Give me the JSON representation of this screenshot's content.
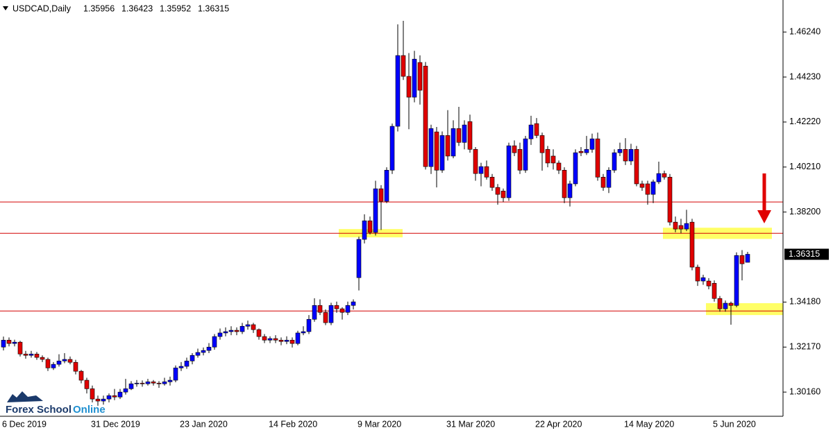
{
  "chart_data": {
    "type": "candlestick",
    "title": "USDCAD,Daily",
    "up_color": "#0000ff",
    "down_color": "#e00000",
    "wick_color": "#000000",
    "line_color": "#d40000",
    "zone_color": "#ffff66",
    "ylim": [
      1.2908,
      1.4767
    ],
    "yticks": [
      {
        "value": 1.4624,
        "label": "1.46240"
      },
      {
        "value": 1.4423,
        "label": "1.44230"
      },
      {
        "value": 1.4222,
        "label": "1.42220"
      },
      {
        "value": 1.4021,
        "label": "1.40210"
      },
      {
        "value": 1.382,
        "label": "1.38200"
      },
      {
        "value": 1.3418,
        "label": "1.34180"
      },
      {
        "value": 1.3217,
        "label": "1.32170"
      },
      {
        "value": 1.3016,
        "label": "1.30160"
      }
    ],
    "hlines": [
      1.3865,
      1.3725,
      1.3378
    ],
    "zones": [
      {
        "low": 1.3707,
        "high": 1.3744
      },
      {
        "low": 1.37,
        "high": 1.375
      },
      {
        "low": 1.336,
        "high": 1.3413
      }
    ],
    "categories": [
      "6 Dec 2019",
      null,
      null,
      null,
      null,
      null,
      null,
      null,
      null,
      null,
      null,
      null,
      null,
      null,
      null,
      null,
      "31 Dec 2019",
      null,
      null,
      null,
      null,
      null,
      null,
      null,
      null,
      null,
      null,
      null,
      null,
      null,
      null,
      null,
      "23 Jan 2020",
      null,
      null,
      null,
      null,
      null,
      null,
      null,
      null,
      null,
      null,
      null,
      null,
      null,
      null,
      null,
      "14 Feb 2020",
      null,
      null,
      null,
      null,
      null,
      null,
      null,
      null,
      null,
      null,
      null,
      null,
      null,
      null,
      null,
      "9 Mar 2020",
      null,
      null,
      null,
      null,
      null,
      null,
      null,
      null,
      null,
      null,
      null,
      null,
      null,
      null,
      null,
      "31 Mar 2020",
      null,
      null,
      null,
      null,
      null,
      null,
      null,
      null,
      null,
      null,
      null,
      null,
      null,
      null,
      null,
      "22 Apr 2020",
      null,
      null,
      null,
      null,
      null,
      null,
      null,
      null,
      null,
      null,
      null,
      null,
      null,
      null,
      null,
      "14 May 2020",
      null,
      null,
      null,
      null,
      null,
      null,
      null,
      null,
      null,
      null,
      null,
      null,
      null,
      null,
      null,
      "5 Jun 2020",
      null,
      null,
      null,
      null,
      null,
      null
    ],
    "open": [
      1.3217,
      1.3248,
      1.3233,
      1.3239,
      1.3186,
      1.318,
      1.3186,
      1.3171,
      1.3162,
      1.3124,
      1.314,
      1.3155,
      1.3162,
      1.3149,
      1.3109,
      1.3069,
      1.3031,
      1.2985,
      1.2976,
      1.2985,
      1.3,
      1.2994,
      1.3016,
      1.3031,
      1.3053,
      1.3056,
      1.3053,
      1.3062,
      1.3056,
      1.3053,
      1.3062,
      1.3069,
      1.3124,
      1.3131,
      1.3155,
      1.318,
      1.3193,
      1.3202,
      1.3217,
      1.3264,
      1.328,
      1.3286,
      1.3292,
      1.3286,
      1.331,
      1.3317,
      1.3295,
      1.3264,
      1.3248,
      1.3255,
      1.3248,
      1.3242,
      1.3248,
      1.3233,
      1.328,
      1.3286,
      1.3341,
      1.3403,
      1.3372,
      1.3326,
      1.3403,
      1.3388,
      1.3372,
      1.3403,
      1.3527,
      1.3698,
      1.3781,
      1.3729,
      1.3924,
      1.3868,
      1.4007,
      1.4203,
      1.4519,
      1.4426,
      1.4333,
      1.4488,
      1.4472,
      1.4023,
      1.4178,
      1.4007,
      1.4162,
      1.407,
      1.4193,
      1.4131,
      1.4224,
      1.41,
      1.3992,
      1.4023,
      1.3976,
      1.393,
      1.3914,
      1.3884,
      1.4116,
      1.41,
      1.4007,
      1.4147,
      1.4215,
      1.4162,
      1.41,
      1.407,
      1.4039,
      1.4007,
      1.3884,
      1.3946,
      1.4091,
      1.4085,
      1.41,
      1.4147,
      1.3976,
      1.393,
      1.4007,
      1.4085,
      1.41,
      1.4048,
      1.41,
      1.3946,
      1.3946,
      1.3899,
      1.3955,
      1.3992,
      1.3976,
      1.3775,
      1.376,
      1.3744,
      1.3775,
      1.3574,
      1.3512,
      1.3512,
      1.3502,
      1.3434,
      1.3388,
      1.3413,
      1.3403,
      1.3626,
      1.35956
    ],
    "high": [
      1.3264,
      1.326,
      1.325,
      1.3245,
      1.32,
      1.32,
      1.3195,
      1.318,
      1.317,
      1.315,
      1.3185,
      1.319,
      1.3175,
      1.316,
      1.3115,
      1.308,
      1.3045,
      1.3,
      1.3,
      1.301,
      1.303,
      1.303,
      1.3075,
      1.3065,
      1.307,
      1.3068,
      1.3075,
      1.307,
      1.3065,
      1.308,
      1.3085,
      1.3135,
      1.315,
      1.317,
      1.319,
      1.321,
      1.3215,
      1.3235,
      1.3275,
      1.33,
      1.3305,
      1.331,
      1.3305,
      1.3325,
      1.3335,
      1.3325,
      1.33,
      1.3275,
      1.3265,
      1.327,
      1.326,
      1.3265,
      1.326,
      1.329,
      1.331,
      1.336,
      1.3435,
      1.343,
      1.3385,
      1.3415,
      1.342,
      1.3395,
      1.342,
      1.343,
      1.371,
      1.381,
      1.38,
      1.396,
      1.394,
      1.402,
      1.4215,
      1.4658,
      1.4674,
      1.453,
      1.454,
      1.452,
      1.449,
      1.421,
      1.42,
      1.418,
      1.4275,
      1.423,
      1.429,
      1.423,
      1.4255,
      1.411,
      1.404,
      1.405,
      1.399,
      1.3945,
      1.3925,
      1.413,
      1.414,
      1.413,
      1.416,
      1.425,
      1.424,
      1.4175,
      1.4115,
      1.41,
      1.405,
      1.402,
      1.396,
      1.41,
      1.411,
      1.416,
      1.417,
      1.4175,
      1.399,
      1.402,
      1.41,
      1.413,
      1.415,
      1.4125,
      1.4115,
      1.396,
      1.396,
      1.3965,
      1.4045,
      1.4005,
      1.399,
      1.38,
      1.379,
      1.383,
      1.379,
      1.3585,
      1.354,
      1.3525,
      1.3515,
      1.3445,
      1.3425,
      1.342,
      1.364,
      1.365,
      1.36423
    ],
    "low": [
      1.3202,
      1.322,
      1.322,
      1.3175,
      1.3165,
      1.317,
      1.316,
      1.315,
      1.311,
      1.3115,
      1.313,
      1.3145,
      1.314,
      1.3095,
      1.3055,
      1.301,
      1.297,
      1.2955,
      1.296,
      1.297,
      1.298,
      1.2985,
      1.3005,
      1.3025,
      1.304,
      1.304,
      1.3045,
      1.3045,
      1.3035,
      1.3045,
      1.3045,
      1.306,
      1.311,
      1.312,
      1.314,
      1.317,
      1.318,
      1.319,
      1.3205,
      1.325,
      1.3265,
      1.327,
      1.327,
      1.3275,
      1.3295,
      1.328,
      1.325,
      1.3235,
      1.3235,
      1.3235,
      1.3225,
      1.323,
      1.3215,
      1.3225,
      1.327,
      1.3275,
      1.333,
      1.336,
      1.3315,
      1.3315,
      1.337,
      1.334,
      1.336,
      1.3385,
      1.347,
      1.368,
      1.372,
      1.3715,
      1.374,
      1.386,
      1.399,
      1.418,
      1.441,
      1.419,
      1.431,
      1.43,
      1.401,
      1.399,
      1.393,
      1.3995,
      1.405,
      1.406,
      1.4115,
      1.41,
      1.4085,
      1.396,
      1.3935,
      1.3965,
      1.3915,
      1.3853,
      1.3865,
      1.387,
      1.407,
      1.399,
      1.3995,
      1.412,
      1.415,
      1.4005,
      1.402,
      1.401,
      1.399,
      1.386,
      1.3845,
      1.3935,
      1.407,
      1.4075,
      1.4085,
      1.396,
      1.3915,
      1.3905,
      1.3995,
      1.407,
      1.403,
      1.403,
      1.3935,
      1.3915,
      1.3853,
      1.386,
      1.3945,
      1.3965,
      1.376,
      1.373,
      1.3725,
      1.3735,
      1.356,
      1.349,
      1.3495,
      1.3475,
      1.342,
      1.3375,
      1.3375,
      1.3317,
      1.3395,
      1.3515,
      1.35952
    ],
    "close": [
      1.3248,
      1.3233,
      1.3239,
      1.3186,
      1.318,
      1.3186,
      1.3171,
      1.3162,
      1.3124,
      1.314,
      1.3155,
      1.3162,
      1.3149,
      1.3109,
      1.3069,
      1.3031,
      1.2985,
      1.2976,
      1.2985,
      1.3,
      1.2994,
      1.3016,
      1.3031,
      1.3053,
      1.3056,
      1.3053,
      1.3062,
      1.3056,
      1.3053,
      1.3062,
      1.3069,
      1.3124,
      1.3131,
      1.3155,
      1.318,
      1.3193,
      1.3202,
      1.3217,
      1.3264,
      1.328,
      1.3286,
      1.3292,
      1.3286,
      1.331,
      1.3317,
      1.3295,
      1.3264,
      1.3248,
      1.3255,
      1.3248,
      1.3242,
      1.3248,
      1.3233,
      1.328,
      1.3286,
      1.3341,
      1.3403,
      1.3372,
      1.3326,
      1.3403,
      1.3388,
      1.3372,
      1.3403,
      1.3419,
      1.3698,
      1.3781,
      1.3729,
      1.3924,
      1.3868,
      1.4007,
      1.4203,
      1.4519,
      1.4426,
      1.4333,
      1.4503,
      1.4364,
      1.4023,
      1.4193,
      1.4007,
      1.4162,
      1.407,
      1.4193,
      1.4131,
      1.4209,
      1.41,
      1.3992,
      1.4023,
      1.3976,
      1.393,
      1.3899,
      1.3884,
      1.4116,
      1.4085,
      1.4007,
      1.4147,
      1.4209,
      1.4162,
      1.4085,
      1.4039,
      1.4039,
      1.4007,
      1.3884,
      1.3946,
      1.4085,
      1.4085,
      1.41,
      1.4147,
      1.3976,
      1.393,
      1.4007,
      1.4085,
      1.41,
      1.4048,
      1.41,
      1.3946,
      1.393,
      1.3899,
      1.3955,
      1.3992,
      1.3976,
      1.3775,
      1.3744,
      1.3744,
      1.3769,
      1.3574,
      1.3512,
      1.3527,
      1.349,
      1.3434,
      1.3388,
      1.3413,
      1.3403,
      1.3626,
      1.3589,
      1.36315
    ]
  },
  "logo": {
    "first": "Forex School",
    "second": "Online"
  }
}
